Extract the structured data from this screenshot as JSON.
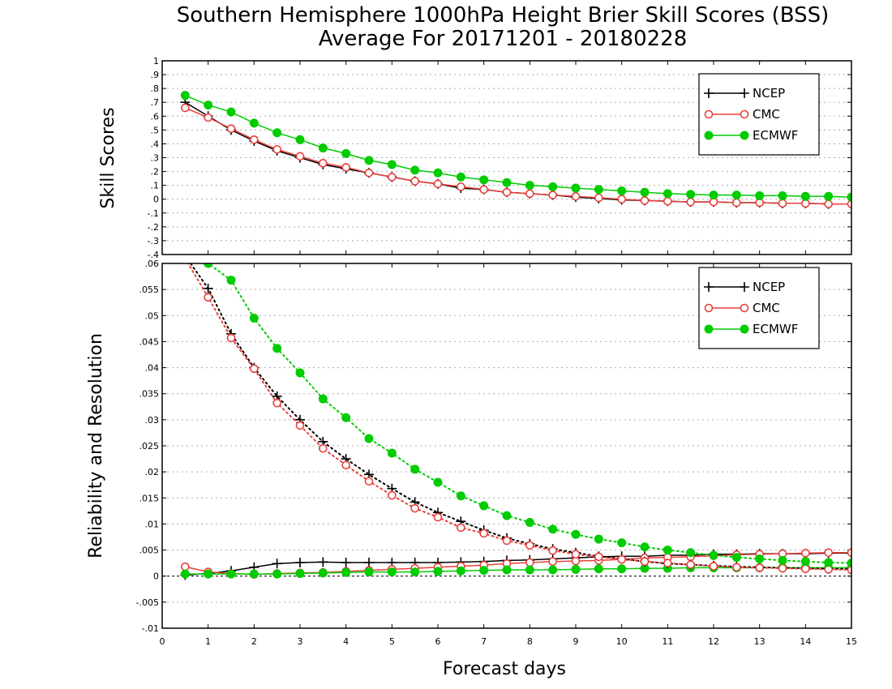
{
  "title_line1": "Southern Hemisphere 1000hPa Height Brier Skill Scores (BSS)",
  "title_line2": "Average For 20171201 - 20180228",
  "xlabel": "Forecast days",
  "colors": {
    "NCEP": "#000000",
    "CMC": "#e8403c",
    "ECMWF": "#00cc00"
  },
  "chart_data": [
    {
      "type": "line",
      "panel": "top",
      "ylabel": "Skill Scores",
      "xlim": [
        0,
        15
      ],
      "ylim": [
        -0.4,
        1
      ],
      "xticks": [
        0,
        1,
        2,
        3,
        4,
        5,
        6,
        7,
        8,
        9,
        10,
        11,
        12,
        13,
        14,
        15
      ],
      "yticks": [
        -0.4,
        -0.3,
        -0.2,
        -0.1,
        0,
        0.1,
        0.2,
        0.3,
        0.4,
        0.5,
        0.6,
        0.7,
        0.8,
        0.9,
        1
      ],
      "grid": true,
      "legend": "top-right",
      "x": [
        0.5,
        1,
        1.5,
        2,
        2.5,
        3,
        3.5,
        4,
        4.5,
        5,
        5.5,
        6,
        6.5,
        7,
        7.5,
        8,
        8.5,
        9,
        9.5,
        10,
        10.5,
        11,
        11.5,
        12,
        12.5,
        13,
        13.5,
        14,
        14.5,
        15
      ],
      "series": [
        {
          "name": "NCEP",
          "marker": "plus",
          "style": "solid",
          "values": [
            0.7,
            0.6,
            0.5,
            0.42,
            0.35,
            0.3,
            0.25,
            0.22,
            0.19,
            0.16,
            0.13,
            0.11,
            0.08,
            0.07,
            0.05,
            0.04,
            0.03,
            0.015,
            0.005,
            -0.005,
            -0.01,
            -0.015,
            -0.02,
            -0.02,
            -0.025,
            -0.025,
            -0.03,
            -0.03,
            -0.035,
            -0.035
          ]
        },
        {
          "name": "CMC",
          "marker": "circle-open",
          "style": "solid",
          "values": [
            0.66,
            0.59,
            0.51,
            0.43,
            0.36,
            0.31,
            0.26,
            0.23,
            0.19,
            0.16,
            0.13,
            0.11,
            0.09,
            0.07,
            0.05,
            0.04,
            0.03,
            0.02,
            0.01,
            0.0,
            -0.01,
            -0.015,
            -0.02,
            -0.02,
            -0.025,
            -0.025,
            -0.03,
            -0.03,
            -0.035,
            -0.035
          ]
        },
        {
          "name": "ECMWF",
          "marker": "circle-filled",
          "style": "solid",
          "values": [
            0.75,
            0.68,
            0.63,
            0.55,
            0.48,
            0.43,
            0.37,
            0.33,
            0.28,
            0.25,
            0.21,
            0.19,
            0.16,
            0.14,
            0.12,
            0.1,
            0.09,
            0.08,
            0.07,
            0.06,
            0.05,
            0.04,
            0.035,
            0.03,
            0.03,
            0.025,
            0.025,
            0.02,
            0.02,
            0.015
          ]
        }
      ]
    },
    {
      "type": "line",
      "panel": "bottom",
      "ylabel": "Reliability and Resolution",
      "xlim": [
        0,
        15
      ],
      "ylim": [
        -0.01,
        0.06
      ],
      "xticks": [
        0,
        1,
        2,
        3,
        4,
        5,
        6,
        7,
        8,
        9,
        10,
        11,
        12,
        13,
        14,
        15
      ],
      "yticks": [
        -0.01,
        -0.005,
        0,
        0.005,
        0.01,
        0.015,
        0.02,
        0.025,
        0.03,
        0.035,
        0.04,
        0.045,
        0.05,
        0.055,
        0.06
      ],
      "grid": true,
      "legend": "top-right",
      "x": [
        0.5,
        1,
        1.5,
        2,
        2.5,
        3,
        3.5,
        4,
        4.5,
        5,
        5.5,
        6,
        6.5,
        7,
        7.5,
        8,
        8.5,
        9,
        9.5,
        10,
        10.5,
        11,
        11.5,
        12,
        12.5,
        13,
        13.5,
        14,
        14.5,
        15
      ],
      "series": [
        {
          "name": "NCEP",
          "metric": "reliability",
          "marker": "plus",
          "style": "solid",
          "values": [
            0.0002,
            0.0005,
            0.001,
            0.0017,
            0.0024,
            0.0026,
            0.0027,
            0.0026,
            0.0026,
            0.0026,
            0.0026,
            0.0026,
            0.0027,
            0.0028,
            0.003,
            0.0031,
            0.0033,
            0.0035,
            0.0037,
            0.0038,
            0.0038,
            0.004,
            0.004,
            0.0042,
            0.0042,
            0.0043,
            0.0043,
            0.0043,
            0.0044,
            0.0044
          ]
        },
        {
          "name": "CMC",
          "metric": "reliability",
          "marker": "circle-open",
          "style": "solid",
          "values": [
            0.0018,
            0.0008,
            0.0005,
            0.0003,
            0.0005,
            0.0006,
            0.0007,
            0.0009,
            0.0011,
            0.0013,
            0.0015,
            0.0017,
            0.0019,
            0.0021,
            0.0024,
            0.0026,
            0.0028,
            0.0029,
            0.003,
            0.0032,
            0.0035,
            0.0036,
            0.0037,
            0.0039,
            0.0041,
            0.0042,
            0.0043,
            0.0044,
            0.0045,
            0.0045
          ]
        },
        {
          "name": "ECMWF",
          "metric": "reliability",
          "marker": "circle-filled",
          "style": "solid",
          "values": [
            0.0004,
            0.0004,
            0.0004,
            0.0004,
            0.0004,
            0.0005,
            0.0006,
            0.0007,
            0.0008,
            0.0008,
            0.0008,
            0.0009,
            0.001,
            0.0011,
            0.0012,
            0.0012,
            0.0012,
            0.0013,
            0.0014,
            0.0014,
            0.0015,
            0.0015,
            0.0016,
            0.0016,
            0.0016,
            0.0016,
            0.0016,
            0.0016,
            0.0016,
            0.0016
          ]
        },
        {
          "name": "NCEP",
          "metric": "resolution",
          "marker": "plus",
          "style": "dotted",
          "values": [
            0.0615,
            0.0552,
            0.0465,
            0.04,
            0.0345,
            0.03,
            0.0258,
            0.0225,
            0.0195,
            0.0168,
            0.0142,
            0.0122,
            0.0105,
            0.0088,
            0.0073,
            0.0062,
            0.0052,
            0.0045,
            0.0038,
            0.0033,
            0.0028,
            0.0024,
            0.0022,
            0.002,
            0.0018,
            0.0017,
            0.0016,
            0.0015,
            0.0014,
            0.0014
          ]
        },
        {
          "name": "CMC",
          "metric": "resolution",
          "marker": "circle-open",
          "style": "dotted",
          "values": [
            0.061,
            0.0535,
            0.0457,
            0.0398,
            0.0332,
            0.0289,
            0.0245,
            0.0213,
            0.0182,
            0.0155,
            0.013,
            0.0113,
            0.0093,
            0.0082,
            0.0068,
            0.0059,
            0.0049,
            0.0042,
            0.0037,
            0.0032,
            0.0028,
            0.0025,
            0.0022,
            0.0019,
            0.0017,
            0.0016,
            0.0015,
            0.0014,
            0.0013,
            0.0012
          ]
        },
        {
          "name": "ECMWF",
          "metric": "resolution",
          "marker": "circle-filled",
          "style": "dotted",
          "values": [
            0.064,
            0.06,
            0.0568,
            0.0495,
            0.0437,
            0.039,
            0.034,
            0.0304,
            0.0264,
            0.0236,
            0.0205,
            0.018,
            0.0154,
            0.0135,
            0.0116,
            0.0103,
            0.009,
            0.008,
            0.0071,
            0.0064,
            0.0056,
            0.005,
            0.0045,
            0.004,
            0.0036,
            0.0033,
            0.003,
            0.0028,
            0.0026,
            0.0025
          ]
        }
      ]
    }
  ]
}
